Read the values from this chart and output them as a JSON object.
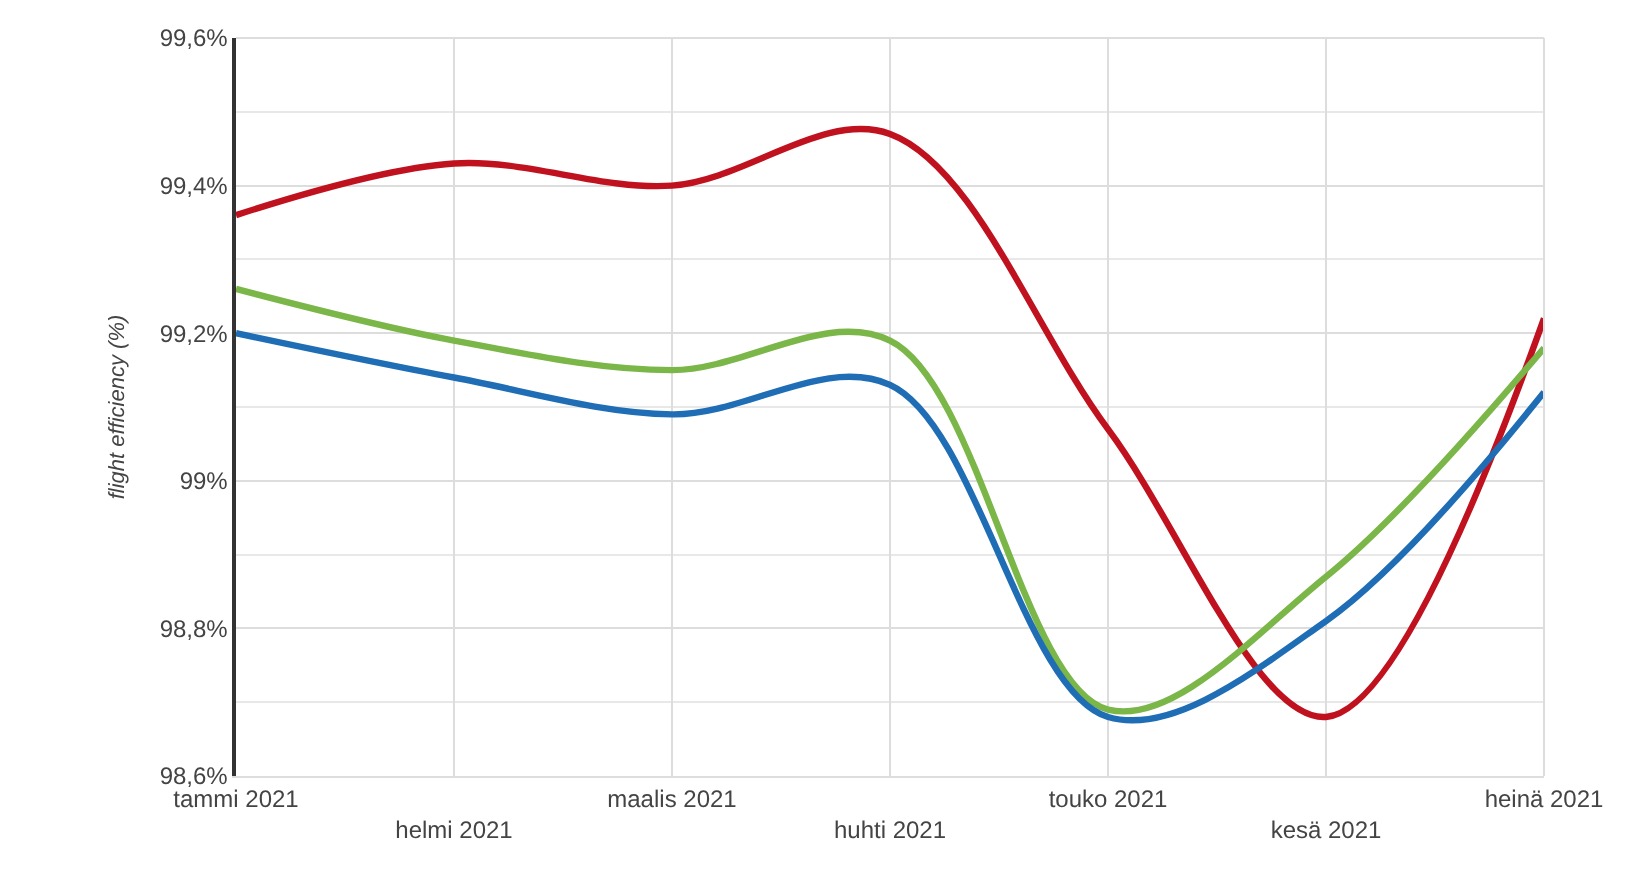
{
  "chart_data": {
    "type": "line",
    "ylabel": "flight efficiency (%)",
    "categories": [
      "tammi 2021",
      "helmi 2021",
      "maalis 2021",
      "huhti 2021",
      "touko 2021",
      "kesä 2021",
      "heinä 2021"
    ],
    "series": [
      {
        "color": "#c0111f",
        "values": [
          99.36,
          99.43,
          99.4,
          99.47,
          99.07,
          98.68,
          99.22
        ]
      },
      {
        "color": "#7ab648",
        "values": [
          99.26,
          99.19,
          99.15,
          99.19,
          98.69,
          98.87,
          99.18
        ]
      },
      {
        "color": "#1f6db5",
        "values": [
          99.2,
          99.14,
          99.09,
          99.13,
          98.68,
          98.81,
          99.12
        ]
      }
    ],
    "ylim": [
      98.6,
      99.6
    ],
    "yticks": [
      {
        "value": 98.6,
        "label": "98,6%"
      },
      {
        "value": 98.8,
        "label": "98,8%"
      },
      {
        "value": 99.0,
        "label": "99%"
      },
      {
        "value": 99.2,
        "label": "99,2%"
      },
      {
        "value": 99.4,
        "label": "99,4%"
      },
      {
        "value": 99.6,
        "label": "99,6%"
      }
    ],
    "grid": true,
    "marker": "none",
    "line_style": "solid"
  }
}
